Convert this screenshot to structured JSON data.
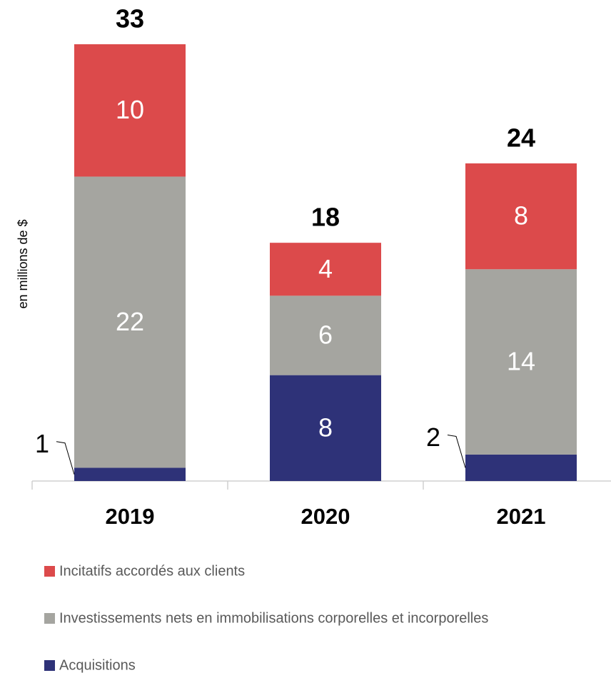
{
  "chart_data": {
    "type": "stacked_bar",
    "y_label": "en millions de $",
    "categories": [
      "2019",
      "2020",
      "2021"
    ],
    "series": [
      {
        "name": "Acquisitions",
        "color": "#2e3278",
        "values": [
          1,
          8,
          2
        ]
      },
      {
        "name": "Investissements nets en immobilisations corporelles et incorporelles",
        "color": "#a5a5a0",
        "values": [
          22,
          6,
          14
        ]
      },
      {
        "name": "Incitatifs accordés aux clients",
        "color": "#dc4a4b",
        "values": [
          10,
          4,
          8
        ]
      }
    ],
    "totals": [
      33,
      18,
      24
    ],
    "ylim": [
      0,
      33
    ],
    "legend": "bottom"
  }
}
